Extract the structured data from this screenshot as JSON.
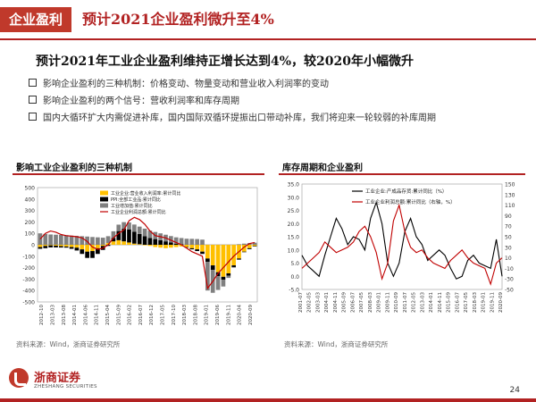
{
  "header": {
    "tag": "企业盈利",
    "title": "预计2021企业盈利微升至4%"
  },
  "subtitle": "预计2021年工业企业盈利维持正增长达到4%，较2020年小幅微升",
  "bullets": [
    "影响企业盈利的三种机制：价格变动、物量变动和营业收入利润率的变动",
    "影响企业盈利的两个信号：营收利润率和库存周期",
    "国内大循环扩大内需促进补库，国内国际双循环提振出口带动补库，我们将迎来一轮较弱的补库周期"
  ],
  "left_panel": {
    "title": "影响工业企业盈利的三种机制",
    "source": "资料来源：Wind，浙商证券研究所"
  },
  "right_panel": {
    "title": "库存周期和企业盈利",
    "source": "资料来源：Wind，浙商证券研究所"
  },
  "footer": {
    "brand_cn": "浙商证券",
    "brand_en": "ZHESHANG SECURITIES",
    "page": "24"
  },
  "colors": {
    "accent": "#b22222",
    "yellow": "#ffc000",
    "black": "#000000",
    "gray": "#808080",
    "red": "#c00000"
  },
  "chart_data": [
    {
      "type": "bar",
      "title": "影响工业企业盈利的三种机制",
      "legend": [
        "工业企业:营业收入利润率:累计同比",
        "PPI:全部工业品:累计同比",
        "工业增加值:累计同比",
        "工业企业利润总额:累计同比"
      ],
      "ylim": [
        -500,
        500
      ],
      "yticks": [
        -500,
        -400,
        -300,
        -200,
        -100,
        0,
        100,
        200,
        300,
        400,
        500
      ],
      "xticks": [
        "2012-10",
        "2013-03",
        "2013-08",
        "2014-01",
        "2014-06",
        "2014-11",
        "2015-04",
        "2015-09",
        "2016-02",
        "2016-07",
        "2016-12",
        "2017-05",
        "2017-10",
        "2018-03",
        "2018-08",
        "2019-01",
        "2019-06",
        "2019-11",
        "2020-04",
        "2020-09"
      ],
      "series": [
        {
          "name": "工业企业:营业收入利润率:累计同比",
          "kind": "bar",
          "color": "#ffc000",
          "values": [
            -20,
            -10,
            -5,
            -8,
            -12,
            -15,
            -20,
            -25,
            -40,
            -60,
            -55,
            -30,
            -10,
            15,
            30,
            40,
            30,
            20,
            10,
            5,
            -5,
            -10,
            -20,
            -25,
            -30,
            -25,
            -20,
            -15,
            -20,
            -30,
            -40,
            -60,
            -120,
            -180,
            -240,
            -280,
            -250,
            -180,
            -120,
            -60,
            -30,
            -10
          ]
        },
        {
          "name": "PPI:全部工业品:累计同比",
          "kind": "bar",
          "color": "#000000",
          "values": [
            -15,
            -20,
            -18,
            -15,
            -12,
            -10,
            -15,
            -25,
            -40,
            -55,
            -60,
            -50,
            -35,
            -10,
            30,
            80,
            110,
            115,
            105,
            90,
            75,
            60,
            50,
            40,
            30,
            20,
            10,
            5,
            -5,
            -10,
            -15,
            -20,
            -30,
            -40,
            -35,
            -25,
            -20,
            -15,
            -10,
            -5,
            -8,
            -5
          ]
        },
        {
          "name": "工业增加值:累计同比",
          "kind": "bar",
          "color": "#808080",
          "values": [
            100,
            95,
            90,
            88,
            86,
            84,
            80,
            78,
            75,
            72,
            68,
            65,
            62,
            60,
            58,
            56,
            58,
            60,
            62,
            64,
            66,
            64,
            62,
            60,
            58,
            56,
            55,
            54,
            53,
            52,
            50,
            45,
            -250,
            -200,
            -120,
            -60,
            -20,
            -5,
            5,
            10,
            15,
            18
          ]
        },
        {
          "name": "工业企业利润总额:累计同比",
          "kind": "line",
          "color": "#c00000",
          "values": [
            50,
            100,
            120,
            110,
            90,
            80,
            75,
            70,
            60,
            30,
            -20,
            -40,
            -30,
            0,
            60,
            100,
            130,
            210,
            240,
            220,
            180,
            120,
            80,
            70,
            60,
            40,
            20,
            0,
            -30,
            -60,
            -80,
            -100,
            -380,
            -320,
            -250,
            -200,
            -150,
            -100,
            -60,
            -20,
            10,
            20
          ]
        }
      ]
    },
    {
      "type": "line",
      "title": "库存周期和企业盈利",
      "legend": [
        "工业企业:产成品存货:累计同比（%）",
        "工业企业利润总额:累计同比（右轴，%）"
      ],
      "ylim_left": [
        -5,
        35
      ],
      "yticks_left": [
        -5.0,
        0.0,
        5.0,
        10.0,
        15.0,
        20.0,
        25.0,
        30.0,
        35.0
      ],
      "ylim_right": [
        -50,
        150
      ],
      "yticks_right": [
        -50,
        -30,
        -10,
        10,
        30,
        50,
        70,
        90,
        110,
        130,
        150
      ],
      "xticks": [
        "2001-07",
        "2002-05",
        "2003-03",
        "2004-01",
        "2004-11",
        "2005-09",
        "2006-07",
        "2007-05",
        "2008-03",
        "2009-01",
        "2009-11",
        "2010-09",
        "2011-07",
        "2012-05",
        "2013-03",
        "2014-01",
        "2014-11",
        "2015-09",
        "2016-07",
        "2017-05",
        "2018-03",
        "2019-01",
        "2019-11",
        "2020-09"
      ],
      "series": [
        {
          "name": "工业企业:产成品存货:累计同比（%）",
          "axis": "left",
          "color": "#000000",
          "values": [
            8,
            4,
            2,
            0,
            8,
            15,
            22,
            18,
            12,
            15,
            14,
            10,
            22,
            28,
            20,
            5,
            0,
            5,
            17,
            22,
            15,
            12,
            6,
            8,
            10,
            8,
            3,
            -1,
            0,
            6,
            8,
            5,
            4,
            3,
            14,
            0
          ]
        },
        {
          "name": "工业企业利润总额:累计同比（右轴，%）",
          "axis": "right",
          "color": "#c00000",
          "values": [
            -10,
            0,
            10,
            20,
            40,
            30,
            20,
            25,
            30,
            40,
            60,
            70,
            50,
            20,
            -30,
            0,
            80,
            110,
            60,
            30,
            20,
            25,
            10,
            0,
            -5,
            -10,
            5,
            15,
            25,
            10,
            0,
            -5,
            -10,
            -40,
            0,
            10
          ]
        }
      ]
    }
  ]
}
